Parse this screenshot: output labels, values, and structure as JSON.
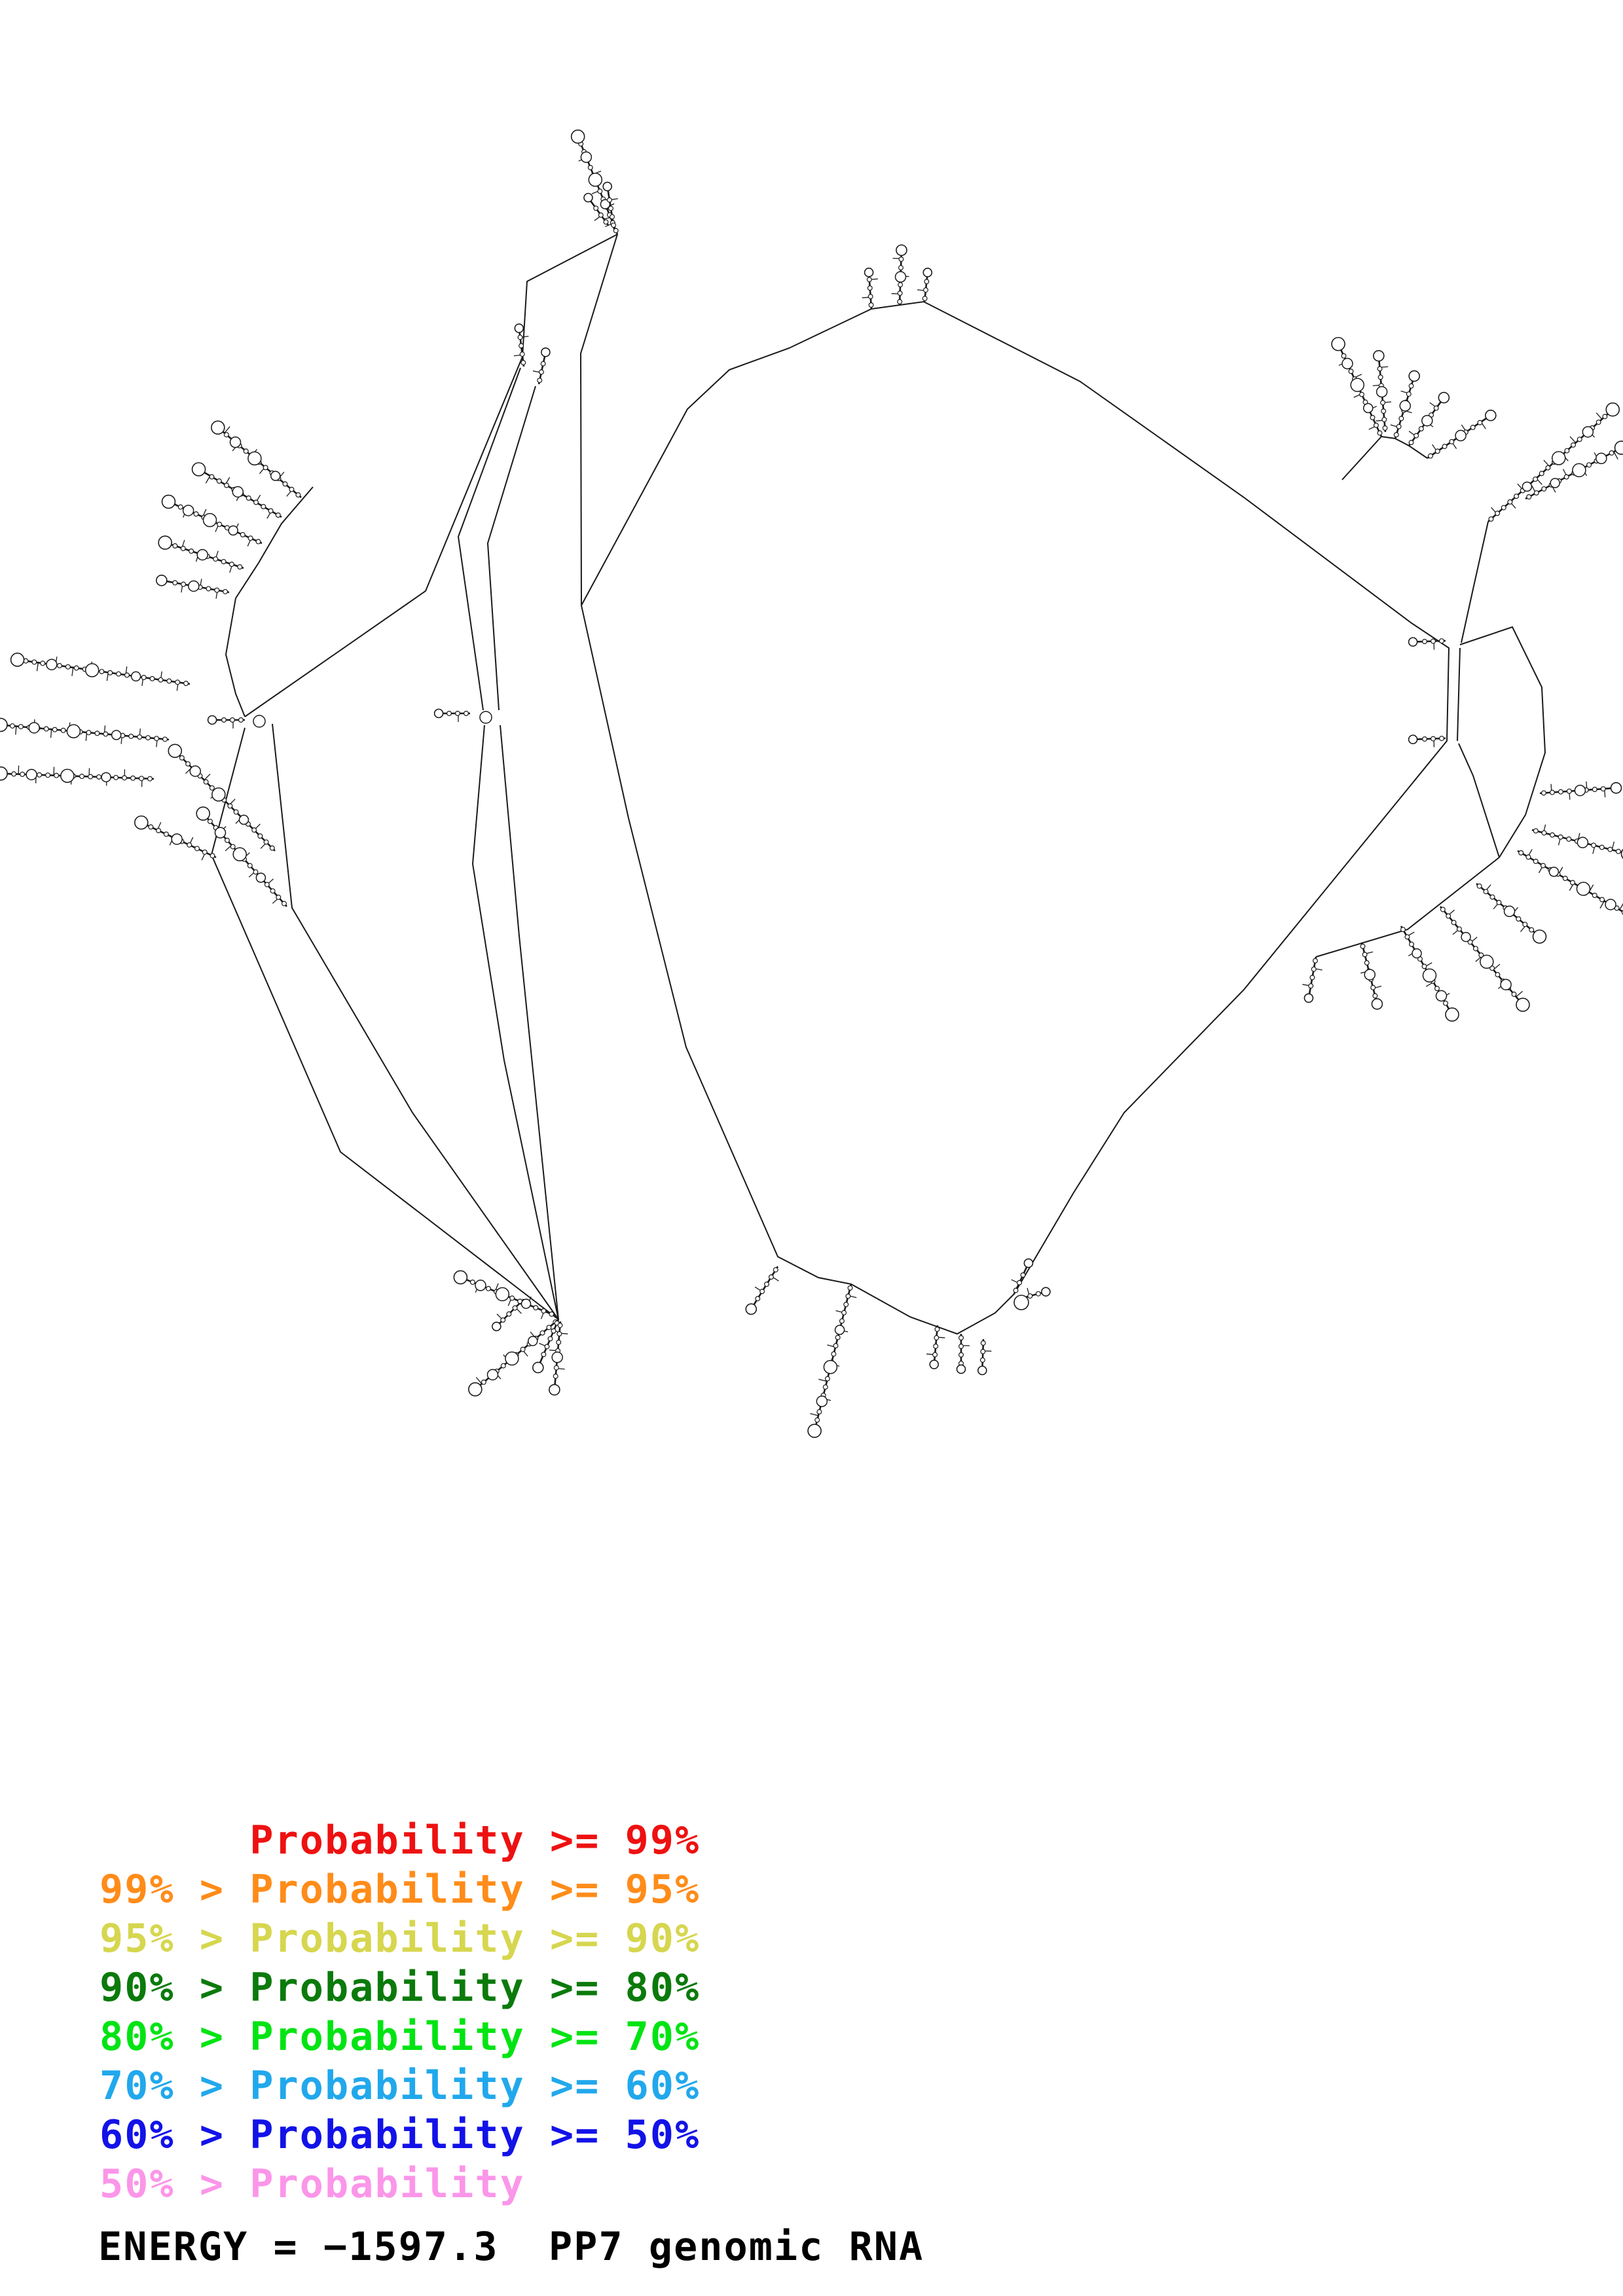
{
  "diagram": {
    "kind": "rna-secondary-structure-plot",
    "molecule": "PP7 genomic RNA"
  },
  "legend": {
    "entries": [
      {
        "label": "      Probability >= 99%",
        "color": "#ee1111"
      },
      {
        "label": "99% > Probability >= 95%",
        "color": "#ff8c19"
      },
      {
        "label": "95% > Probability >= 90%",
        "color": "#d6d64f"
      },
      {
        "label": "90% > Probability >= 80%",
        "color": "#0b7a0b"
      },
      {
        "label": "80% > Probability >= 70%",
        "color": "#00e413"
      },
      {
        "label": "70% > Probability >= 60%",
        "color": "#21a8ec"
      },
      {
        "label": "60% > Probability >= 50%",
        "color": "#1212e8"
      },
      {
        "label": "50% > Probability",
        "color": "#fb96e9"
      }
    ]
  },
  "footer": {
    "energy_line": "ENERGY = −1597.3  PP7 genomic RNA"
  }
}
